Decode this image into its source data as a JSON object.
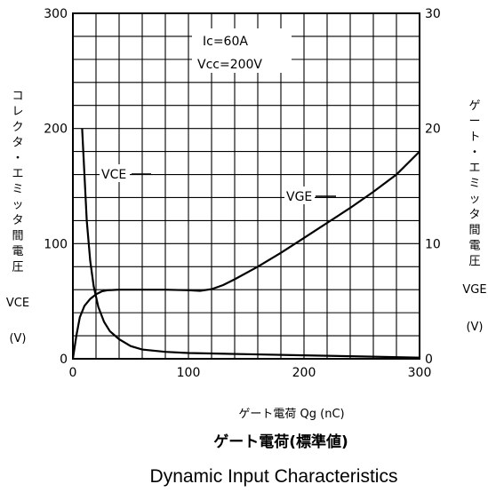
{
  "chart_data": {
    "type": "line",
    "title": "Dynamic Input Characteristics",
    "subtitle": "ゲート電荷(標準値)",
    "xlabel": "ゲート電荷 Qg (nC)",
    "ylabel_left": {
      "vertical": "コレクタ・エミッタ間電圧",
      "symbol": "VCE",
      "unit": "(V)"
    },
    "ylabel_right": {
      "vertical": "ゲート・エミッタ間電圧",
      "symbol": "VGE",
      "unit": "(V)"
    },
    "xlim": [
      0,
      300
    ],
    "ylim_left": [
      0,
      300
    ],
    "ylim_right": [
      0,
      30
    ],
    "x_ticks": [
      "0",
      "100",
      "200",
      "300"
    ],
    "y_left_ticks": [
      "0",
      "100",
      "200",
      "300"
    ],
    "y_right_ticks": [
      "0",
      "10",
      "20",
      "30"
    ],
    "grid": true,
    "conditions": [
      "Ic=60A",
      "Vcc=200V"
    ],
    "series": [
      {
        "name": "VCE",
        "axis": "left",
        "x": [
          8,
          10,
          12,
          15,
          18,
          22,
          27,
          32,
          40,
          50,
          60,
          80,
          100,
          150,
          200,
          250,
          300
        ],
        "y": [
          200,
          160,
          120,
          85,
          63,
          45,
          32,
          24,
          17,
          11,
          8,
          6,
          5,
          4,
          3,
          2,
          1
        ]
      },
      {
        "name": "VGE",
        "axis": "right",
        "x": [
          0,
          3,
          6,
          10,
          15,
          20,
          25,
          30,
          40,
          60,
          80,
          100,
          110,
          120,
          130,
          140,
          160,
          180,
          200,
          220,
          240,
          260,
          280,
          300
        ],
        "y": [
          0,
          2,
          3.6,
          4.6,
          5.2,
          5.6,
          5.85,
          5.95,
          6,
          6,
          6,
          5.95,
          5.9,
          6.05,
          6.4,
          6.9,
          8,
          9.2,
          10.5,
          11.8,
          13.1,
          14.5,
          16.0,
          18.0
        ]
      }
    ]
  }
}
